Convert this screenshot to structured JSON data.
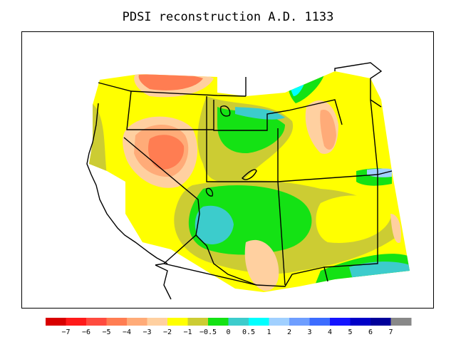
{
  "title": "PDSI reconstruction A.D. 1133",
  "colorbar": {
    "colors": [
      "#d80000",
      "#ff1a1a",
      "#ff4b3f",
      "#ff7d52",
      "#ffab78",
      "#ffd0a0",
      "#ffff00",
      "#cccc33",
      "#14e214",
      "#3ccccc",
      "#00ffff",
      "#a0d0ff",
      "#6e9eff",
      "#3c6cff",
      "#1414ff",
      "#0000c8",
      "#00009a",
      "#888888"
    ],
    "tick_labels": [
      "−7",
      "−6",
      "−5",
      "−4",
      "−3",
      "−2",
      "−1",
      "−0.5",
      "0",
      "0.5",
      "1",
      "2",
      "3",
      "4",
      "5",
      "6",
      "7"
    ]
  },
  "map_colors": {
    "yellow": "#ffff00",
    "olive": "#cccc33",
    "green": "#14e214",
    "cyan": "#3ccccc",
    "light_cyan": "#00ffff",
    "peach": "#ffd0a0",
    "orange": "#ffab78",
    "red_orange": "#ff7d52",
    "pale_blue": "#a0d0ff",
    "border": "#000000"
  }
}
